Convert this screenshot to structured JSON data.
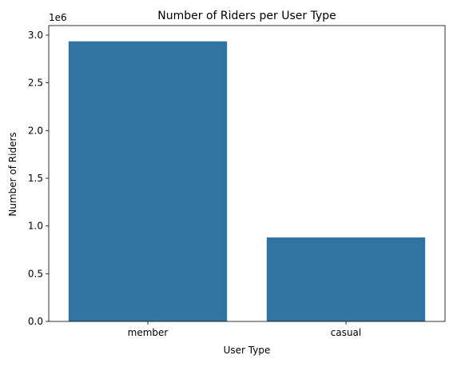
{
  "chart_data": {
    "type": "bar",
    "title": "Number of Riders per User Type",
    "xlabel": "User Type",
    "ylabel": "Number of Riders",
    "categories": [
      "member",
      "casual"
    ],
    "values": [
      2935000,
      880000
    ],
    "ylim": [
      0,
      3100000
    ],
    "yticks": [
      0,
      500000,
      1000000,
      1500000,
      2000000,
      2500000,
      3000000
    ],
    "ytick_labels": [
      "0.0",
      "0.5",
      "1.0",
      "1.5",
      "2.0",
      "2.5",
      "3.0"
    ],
    "offset_text": "1e6",
    "bar_color": "#3274a1",
    "grid": false,
    "legend": "none"
  }
}
